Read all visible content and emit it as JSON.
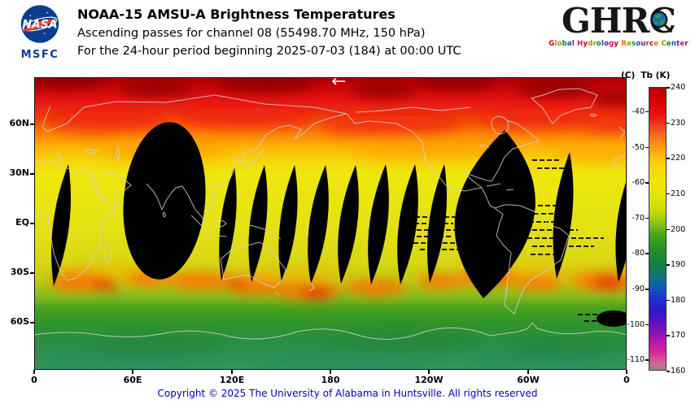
{
  "header": {
    "title": "NOAA-15 AMSU-A Brightness Temperatures",
    "subtitle_channel": "Ascending passes for channel 08 (55498.70 MHz, 150 hPa)",
    "subtitle_period": "For the 24-hour period beginning 2025-07-03 (184) at 00:00 UTC",
    "nasa": {
      "wordmark": "NASA",
      "center": "MSFC"
    },
    "ghrc": {
      "acronym_prefix": "GHR",
      "acronym_last": "C",
      "tagline": "Global Hydrology Resource Center"
    }
  },
  "map": {
    "y_axis_labels": [
      "60N",
      "30N",
      "EQ",
      "30S",
      "60S"
    ],
    "x_axis_labels": [
      "0",
      "60E",
      "120E",
      "180",
      "120W",
      "60W",
      "0"
    ]
  },
  "colorbar": {
    "celsius_unit": "(C)",
    "kelvin_title": "Tb (K)",
    "celsius_ticks": [
      "-40",
      "-50",
      "-60",
      "-70",
      "-80",
      "-90",
      "-100",
      "-110"
    ],
    "kelvin_ticks": [
      "240",
      "230",
      "220",
      "210",
      "200",
      "190",
      "180",
      "170",
      "160"
    ],
    "kelvin_range": [
      160,
      240
    ]
  },
  "footer": {
    "copyright": "Copyright © 2025 The University of Alabama in Huntsville. All rights reserved"
  },
  "colors": {
    "nasa_blue": "#0b3d91",
    "nasa_red": "#fc3d21",
    "footer_blue": "#0000b8",
    "hottest": "#b40000",
    "warm_yellow": "#f0e606",
    "cold_green": "#259122",
    "coldest_gray": "#a08288"
  }
}
